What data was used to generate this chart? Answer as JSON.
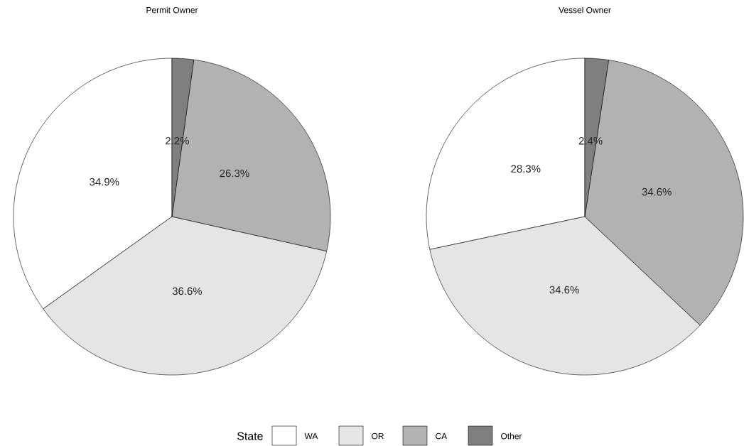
{
  "chart_data": [
    {
      "type": "pie",
      "title": "Permit Owner",
      "categories": [
        "WA",
        "OR",
        "CA",
        "Other"
      ],
      "values": [
        34.9,
        36.6,
        26.3,
        2.2
      ],
      "value_labels": [
        "34.9%",
        "36.6%",
        "26.3%",
        "2.2%"
      ],
      "colors": [
        "#ffffff",
        "#e5e5e5",
        "#b2b2b2",
        "#7f7f7f"
      ],
      "legend": "bottom",
      "legend_title": "State"
    },
    {
      "type": "pie",
      "title": "Vessel Owner",
      "values": [
        28.3,
        34.6,
        34.6,
        2.4
      ],
      "value_labels": [
        "28.3%",
        "34.6%",
        "34.6%",
        "2.4%"
      ],
      "colors": [
        "#ffffff",
        "#e5e5e5",
        "#b2b2b2",
        "#7f7f7f"
      ]
    }
  ]
}
